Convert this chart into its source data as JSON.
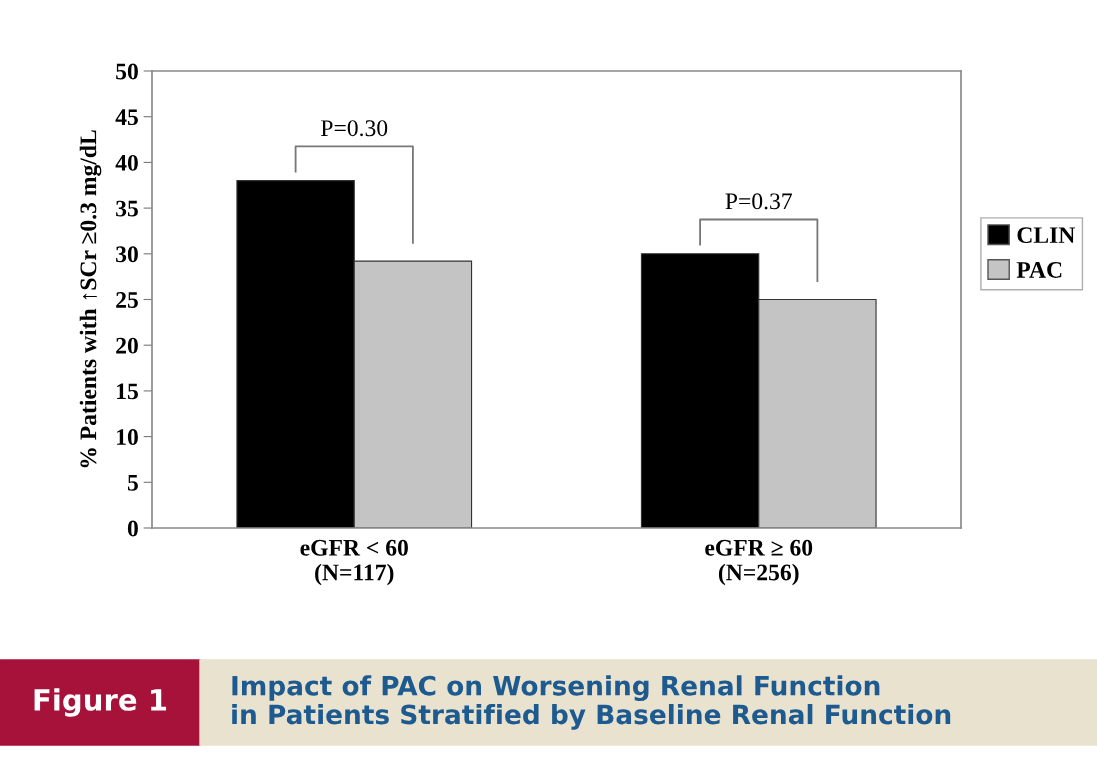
{
  "chart_data": {
    "type": "bar",
    "title": "Impact of PAC on Worsening Renal Function\nin Patients Stratified by Baseline Renal Function",
    "ylabel": "% Patients with ↑SCr ≥0.3 mg/dL",
    "categories": [
      "eGFR < 60\n(N=117)",
      "eGFR ≥ 60\n(N=256)"
    ],
    "series": [
      {
        "name": "CLIN",
        "color": "#000000",
        "values": [
          38,
          30
        ]
      },
      {
        "name": "PAC",
        "color": "#c4c4c4",
        "values": [
          29.2,
          25
        ]
      }
    ],
    "ylim": [
      0,
      50
    ],
    "yticks": [
      0,
      5,
      10,
      15,
      20,
      25,
      30,
      35,
      40,
      45,
      50
    ],
    "legend": "right",
    "grid": false,
    "annotations": [
      "P=0.30",
      "P=0.37",
      "Figure 1"
    ]
  }
}
